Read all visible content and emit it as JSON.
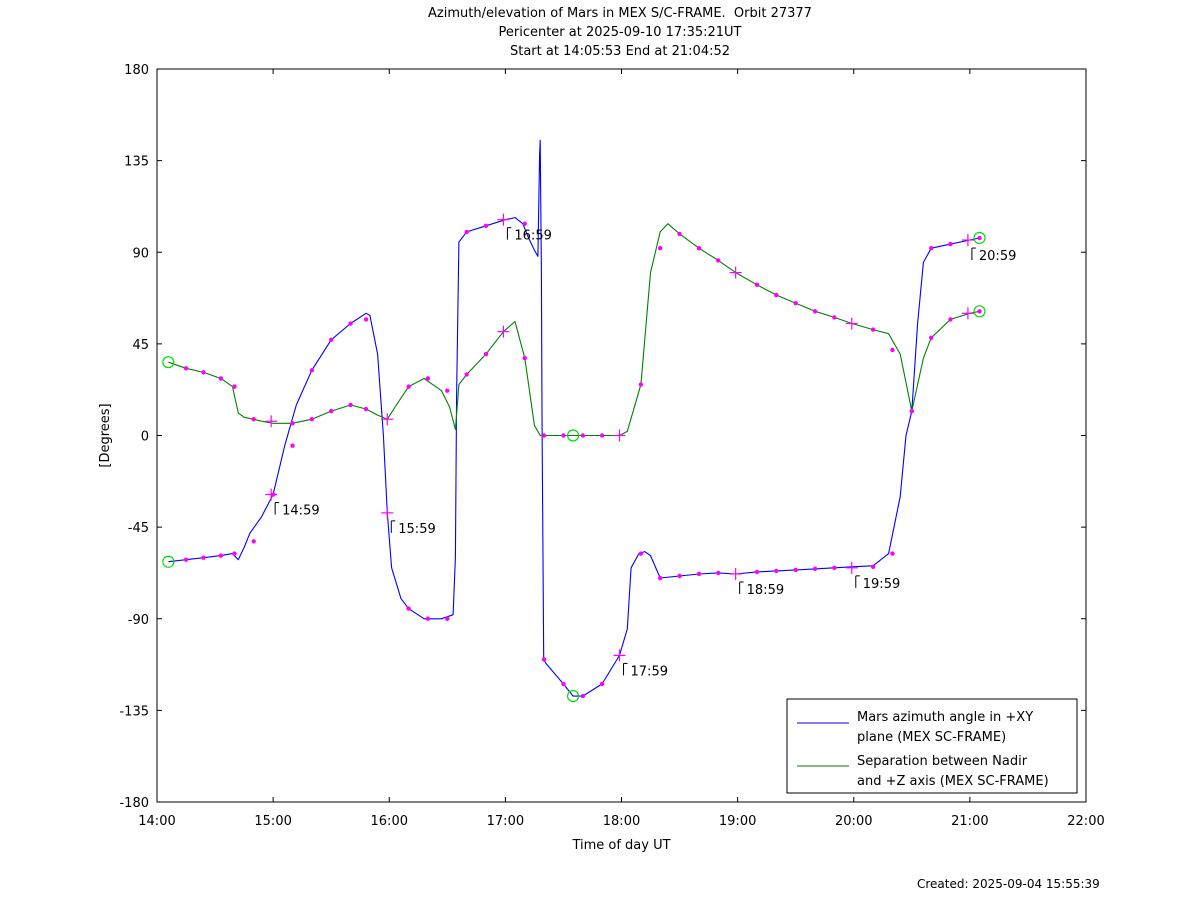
{
  "chart_data": {
    "type": "line",
    "title_lines": [
      "Azimuth/elevation of Mars in MEX S/C-FRAME.  Orbit 27377",
      "Pericenter at 2025-09-10 17:35:21UT",
      "Start at 14:05:53 End at 21:04:52"
    ],
    "xlabel": "Time of day UT",
    "ylabel": "[Degrees]",
    "xlim": [
      14.0,
      22.0
    ],
    "ylim": [
      -180,
      180
    ],
    "x_ticks": [
      14,
      15,
      16,
      17,
      18,
      19,
      20,
      21,
      22
    ],
    "x_tick_labels": [
      "14:00",
      "15:00",
      "16:00",
      "17:00",
      "18:00",
      "19:00",
      "20:00",
      "21:00",
      "22:00"
    ],
    "y_ticks": [
      180,
      135,
      90,
      45,
      0,
      -45,
      -90,
      -135,
      -180
    ],
    "y_tick_labels": [
      "180",
      "135",
      "90",
      "45",
      "0",
      "-45",
      "-90",
      "-135",
      "-180"
    ],
    "grid": false,
    "legend_position": "bottom-right",
    "series": [
      {
        "name": "Mars azimuth angle in +XY plane (MEX SC-FRAME)",
        "legend_lines": [
          "Mars azimuth angle in +XY",
          "plane (MEX SC-FRAME)"
        ],
        "color": "#0000ff",
        "x": [
          14.098,
          14.25,
          14.4,
          14.55,
          14.65,
          14.7,
          14.75,
          14.8,
          14.9,
          15.0,
          15.1,
          15.2,
          15.333,
          15.5,
          15.667,
          15.8,
          15.833,
          15.9,
          15.95,
          15.983,
          16.02,
          16.1,
          16.167,
          16.3,
          16.45,
          16.55,
          16.57,
          16.58,
          16.6,
          16.667,
          16.833,
          17.0,
          17.083,
          17.15,
          17.2,
          17.25,
          17.28,
          17.295,
          17.3,
          17.31,
          17.315,
          17.33,
          17.35,
          17.5,
          17.583,
          17.667,
          17.833,
          17.983,
          18.05,
          18.083,
          18.15,
          18.2,
          18.25,
          18.333,
          18.5,
          18.667,
          18.833,
          18.983,
          19.167,
          19.333,
          19.5,
          19.667,
          19.833,
          19.983,
          20.167,
          20.3,
          20.4,
          20.45,
          20.5,
          20.55,
          20.6,
          20.667,
          20.833,
          21.0,
          21.083
        ],
        "y": [
          -62,
          -61,
          -60,
          -59,
          -58,
          -61,
          -55,
          -48,
          -40,
          -29,
          -5,
          15,
          32,
          47,
          55,
          60,
          59,
          40,
          0,
          -38,
          -65,
          -80,
          -85,
          -90,
          -90,
          -88,
          -60,
          20,
          95,
          100,
          103,
          106,
          107,
          104,
          97,
          91,
          88,
          138,
          145,
          80,
          10,
          -110,
          -112,
          -122,
          -128,
          -128,
          -122,
          -108,
          -95,
          -65,
          -58,
          -57,
          -59,
          -70,
          -69,
          -68,
          -67.5,
          -68,
          -67,
          -66.5,
          -66,
          -65.5,
          -65,
          -64.5,
          -64,
          -58,
          -30,
          0,
          12,
          55,
          85,
          92,
          94,
          96,
          97
        ]
      },
      {
        "name": "Separation between Nadir and +Z axis (MEX SC-FRAME)",
        "legend_lines": [
          "Separation between Nadir",
          "and +Z axis (MEX SC-FRAME)"
        ],
        "color": "#008000",
        "x": [
          14.098,
          14.25,
          14.4,
          14.55,
          14.65,
          14.7,
          14.75,
          14.9,
          15.0,
          15.167,
          15.333,
          15.5,
          15.667,
          15.8,
          15.9,
          15.983,
          16.05,
          16.167,
          16.3,
          16.45,
          16.52,
          16.57,
          16.6,
          16.667,
          16.833,
          16.983,
          17.083,
          17.167,
          17.25,
          17.3,
          17.35,
          17.5,
          17.583,
          17.667,
          17.833,
          17.983,
          18.05,
          18.167,
          18.25,
          18.333,
          18.4,
          18.5,
          18.667,
          18.833,
          18.983,
          19.167,
          19.333,
          19.5,
          19.667,
          19.833,
          19.983,
          20.167,
          20.3,
          20.4,
          20.5,
          20.6,
          20.667,
          20.833,
          21.0,
          21.083
        ],
        "y": [
          36,
          33,
          31,
          28,
          24,
          11,
          9,
          7,
          6,
          6,
          8,
          12,
          15,
          13,
          10,
          8,
          14,
          24,
          28,
          22,
          14,
          3,
          25,
          30,
          40,
          51,
          56,
          38,
          5,
          0,
          0,
          0,
          0,
          0,
          0,
          0,
          2,
          25,
          80,
          100,
          104,
          99,
          92,
          86,
          80,
          74,
          69,
          65,
          61,
          58,
          55,
          52,
          50,
          40,
          12,
          38,
          48,
          57,
          60,
          61
        ]
      }
    ],
    "markers": {
      "dot_color": "#ff00ff",
      "circle_color": "#00dd00",
      "azimuth_dots_x": [
        14.25,
        14.4,
        14.55,
        14.667,
        14.833,
        15.0,
        15.167,
        15.333,
        15.5,
        15.667,
        15.8,
        16.167,
        16.333,
        16.5,
        16.667,
        16.833,
        17.167,
        17.333,
        17.5,
        17.667,
        17.833,
        18.167,
        18.333,
        18.5,
        18.667,
        18.833,
        19.167,
        19.333,
        19.5,
        19.667,
        19.833,
        20.167,
        20.333,
        20.5,
        20.667,
        20.833,
        21.083
      ],
      "azimuth_dots_y": [
        -61,
        -60,
        -59,
        -58,
        -52,
        -29,
        -5,
        32,
        47,
        55,
        57,
        -85,
        -90,
        -90,
        100,
        103,
        104,
        -110,
        -122,
        -128,
        -122,
        -58,
        -70,
        -69,
        -68,
        -67.5,
        -67,
        -66.5,
        -66,
        -65.5,
        -65,
        -64.5,
        -58,
        12,
        92,
        94,
        97
      ],
      "azimuth_crosses_x": [
        14.983,
        15.983,
        16.983,
        17.983,
        18.983,
        19.983,
        20.983
      ],
      "azimuth_crosses_y": [
        -29,
        -38,
        106,
        -108,
        -68,
        -65,
        96
      ],
      "azimuth_circles_x": [
        14.098,
        17.583,
        21.083
      ],
      "azimuth_circles_y": [
        -62,
        -128,
        97
      ],
      "separation_dots_x": [
        14.25,
        14.4,
        14.55,
        14.667,
        14.833,
        15.167,
        15.333,
        15.5,
        15.667,
        15.8,
        16.167,
        16.333,
        16.5,
        16.667,
        16.833,
        17.167,
        17.333,
        17.5,
        17.667,
        17.833,
        18.167,
        18.333,
        18.5,
        18.667,
        18.833,
        19.167,
        19.333,
        19.5,
        19.667,
        19.833,
        20.167,
        20.333,
        20.5,
        20.667,
        20.833,
        21.083
      ],
      "separation_dots_y": [
        33,
        31,
        28,
        24,
        8,
        6,
        8,
        12,
        15,
        13,
        24,
        28,
        22,
        30,
        40,
        38,
        0,
        0,
        0,
        0,
        25,
        92,
        99,
        92,
        86,
        74,
        69,
        65,
        61,
        58,
        52,
        42,
        12,
        48,
        57,
        61
      ],
      "separation_crosses_x": [
        14.983,
        15.983,
        16.983,
        17.983,
        18.983,
        19.983,
        20.983
      ],
      "separation_crosses_y": [
        7,
        8,
        51,
        0,
        80,
        55,
        60
      ],
      "separation_circles_x": [
        14.098,
        17.583,
        21.083
      ],
      "separation_circles_y": [
        36,
        0,
        61
      ]
    },
    "annotations": [
      {
        "text": "14:59",
        "x": 14.983,
        "y": -29
      },
      {
        "text": "15:59",
        "x": 15.983,
        "y": -38
      },
      {
        "text": "16:59",
        "x": 16.983,
        "y": 106
      },
      {
        "text": "17:59",
        "x": 17.983,
        "y": -108
      },
      {
        "text": "18:59",
        "x": 18.983,
        "y": -68
      },
      {
        "text": "19:59",
        "x": 19.983,
        "y": -65
      },
      {
        "text": "20:59",
        "x": 20.983,
        "y": 96
      }
    ]
  },
  "footer": {
    "created": "Created: 2025-09-04 15:55:39"
  }
}
